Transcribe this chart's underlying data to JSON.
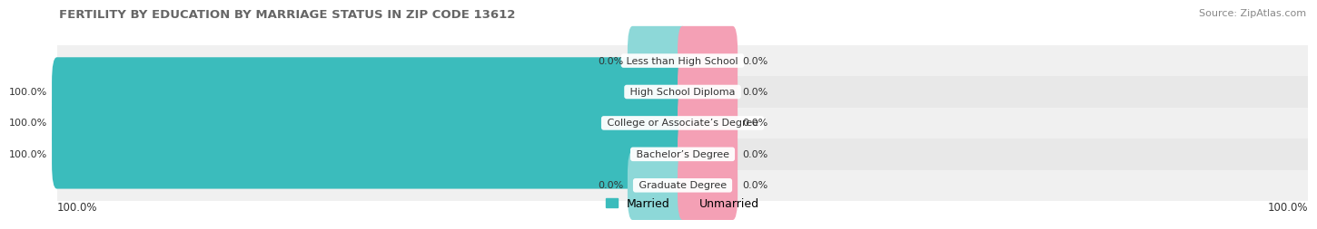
{
  "title": "FERTILITY BY EDUCATION BY MARRIAGE STATUS IN ZIP CODE 13612",
  "source": "Source: ZipAtlas.com",
  "categories": [
    "Less than High School",
    "High School Diploma",
    "College or Associate’s Degree",
    "Bachelor’s Degree",
    "Graduate Degree"
  ],
  "married_values": [
    0.0,
    100.0,
    100.0,
    100.0,
    0.0
  ],
  "unmarried_values": [
    0.0,
    0.0,
    0.0,
    0.0,
    0.0
  ],
  "married_color": "#3bbcbc",
  "married_color_zero": "#8dd8d8",
  "unmarried_color": "#f4a0b5",
  "row_bg_even": "#f0f0f0",
  "row_bg_odd": "#e8e8e8",
  "legend_married": "Married",
  "legend_unmarried": "Unmarried",
  "x_left_label": "100.0%",
  "x_right_label": "100.0%",
  "background_color": "#ffffff",
  "title_color": "#666666",
  "source_color": "#888888",
  "label_color": "#333333",
  "title_fontsize": 9.5,
  "source_fontsize": 8,
  "label_fontsize": 8,
  "axis_label_fontsize": 8.5
}
